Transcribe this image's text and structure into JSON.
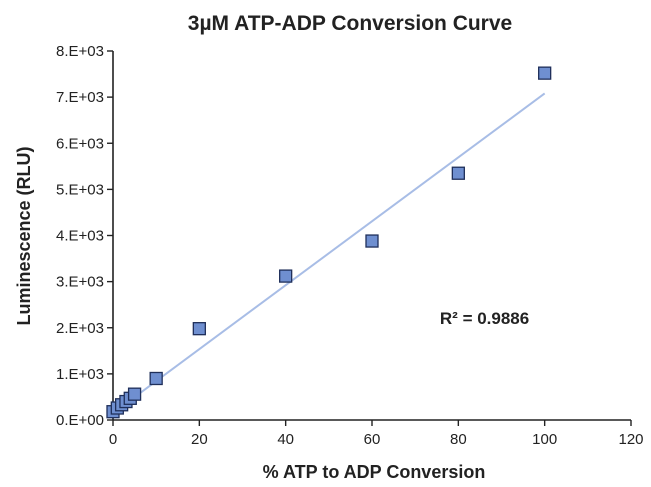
{
  "chart_data": {
    "type": "scatter",
    "title": "3µM ATP-ADP Conversion Curve",
    "xlabel": "% ATP to ADP Conversion",
    "ylabel": "Luminescence (RLU)",
    "xlim": [
      0,
      120
    ],
    "ylim": [
      0,
      8000
    ],
    "x_ticks": [
      0,
      20,
      40,
      60,
      80,
      100,
      120
    ],
    "x_tick_labels": [
      "0",
      "20",
      "40",
      "60",
      "80",
      "100",
      "120"
    ],
    "y_ticks": [
      0,
      1000,
      2000,
      3000,
      4000,
      5000,
      6000,
      7000,
      8000
    ],
    "y_tick_labels": [
      "0.E+00",
      "1.E+03",
      "2.E+03",
      "3.E+03",
      "4.E+03",
      "5.E+03",
      "6.E+03",
      "7.E+03",
      "8.E+03"
    ],
    "grid": false,
    "series": [
      {
        "marker": "square",
        "color": "#6f8fd0",
        "edge_color": "#1f2f5a",
        "points": [
          {
            "x": 0,
            "y": 180
          },
          {
            "x": 1,
            "y": 260
          },
          {
            "x": 2,
            "y": 330
          },
          {
            "x": 3,
            "y": 400
          },
          {
            "x": 4,
            "y": 470
          },
          {
            "x": 5,
            "y": 560
          },
          {
            "x": 10,
            "y": 900
          },
          {
            "x": 20,
            "y": 1980
          },
          {
            "x": 40,
            "y": 3120
          },
          {
            "x": 60,
            "y": 3880
          },
          {
            "x": 80,
            "y": 5350
          },
          {
            "x": 100,
            "y": 7520
          }
        ]
      }
    ],
    "trendline": {
      "type": "linear",
      "x_range": [
        0,
        100
      ],
      "y_at_start": 150,
      "y_at_end": 7080,
      "color": "#a8bde6"
    },
    "annotations": [
      {
        "text": "R² = 0.9886",
        "x": 85,
        "y": 1800
      }
    ]
  }
}
